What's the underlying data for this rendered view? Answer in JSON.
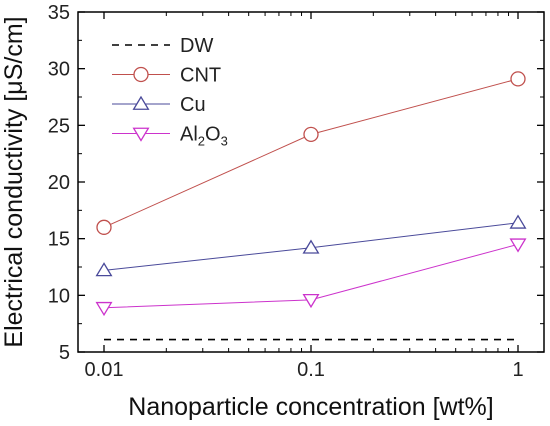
{
  "chart_data": {
    "type": "line",
    "x": [
      0.01,
      0.1,
      1
    ],
    "x_scale": "log",
    "xlim": [
      0.01,
      1
    ],
    "ylim": [
      5,
      35
    ],
    "x_ticks": [
      0.01,
      0.1,
      1
    ],
    "x_tick_labels": [
      "0.01",
      "0.1",
      "1"
    ],
    "y_ticks": [
      5,
      10,
      15,
      20,
      25,
      30,
      35
    ],
    "y_tick_labels": [
      "5",
      "10",
      "15",
      "20",
      "25",
      "30",
      "35"
    ],
    "xlabel": "Nanoparticle concentration [wt%]",
    "ylabel": "Electrical conductivity [μS/cm]",
    "grid": false,
    "legend_position": "top-left",
    "series": [
      {
        "name": "DW",
        "values": [
          6.1,
          6.1,
          6.1
        ],
        "color": "#000000",
        "line_style": "dashed",
        "marker": "none"
      },
      {
        "name": "CNT",
        "values": [
          16.0,
          24.2,
          29.1
        ],
        "color": "#c0504d",
        "line_style": "solid",
        "marker": "circle"
      },
      {
        "name": "Cu",
        "values": [
          12.2,
          14.2,
          16.4
        ],
        "color": "#4a4a9a",
        "line_style": "solid",
        "marker": "triangle-up"
      },
      {
        "name": "Al2O3",
        "name_parts": {
          "base": "Al",
          "sub1": "2",
          "mid": "O",
          "sub2": "3"
        },
        "values": [
          8.9,
          9.6,
          14.5
        ],
        "color": "#cc33cc",
        "line_style": "solid",
        "marker": "triangle-down"
      }
    ]
  }
}
